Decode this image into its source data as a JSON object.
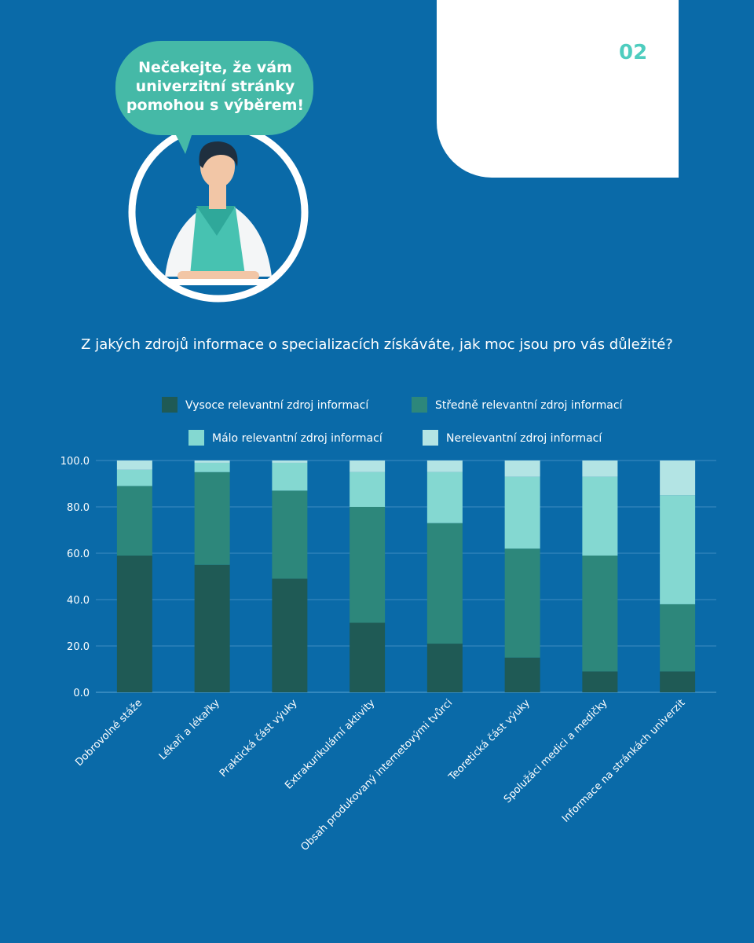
{
  "header": {
    "page_number": "02",
    "bubble_text": "Nečekejte, že vám univerzitní stránky pomohou s výběrem!"
  },
  "question": "Z jakých zdrojů informace o specializacích získáváte, jak moc jsou pro vás důležité?",
  "colors": {
    "background": "#0a6aa8",
    "accent": "#4ecdbf"
  },
  "chart_data": {
    "type": "bar",
    "stacked": true,
    "title": "",
    "xlabel": "",
    "ylabel": "",
    "ylim": [
      0,
      100
    ],
    "yticks": [
      "0.0",
      "20.0",
      "40.0",
      "60.0",
      "80.0",
      "100.0"
    ],
    "grid": true,
    "legend_position": "top",
    "categories": [
      "Dobrovolné stáže",
      "Lékaři a lékařky",
      "Praktická část výuky",
      "Extrakurikulární aktivity",
      "Obsah produkovaný internetovými tvůrci",
      "Teoretická část výuky",
      "Spolužáci medici a medičky",
      "Informace na stránkách univerzit"
    ],
    "series": [
      {
        "name": "Vysoce relevantní zdroj informací",
        "color": "#1f5a55",
        "values": [
          59,
          55,
          49,
          30,
          21,
          15,
          9,
          9
        ]
      },
      {
        "name": "Středně relevantní zdroj informací",
        "color": "#2d877b",
        "values": [
          30,
          40,
          38,
          50,
          52,
          47,
          50,
          29
        ]
      },
      {
        "name": "Málo relevantní zdroj informací",
        "color": "#84d8d1",
        "values": [
          7,
          4,
          12,
          15,
          22,
          31,
          34,
          47
        ]
      },
      {
        "name": "Nerelevantní zdroj informací",
        "color": "#b3e4e4",
        "values": [
          4,
          1,
          1,
          5,
          5,
          7,
          7,
          15
        ]
      }
    ]
  }
}
